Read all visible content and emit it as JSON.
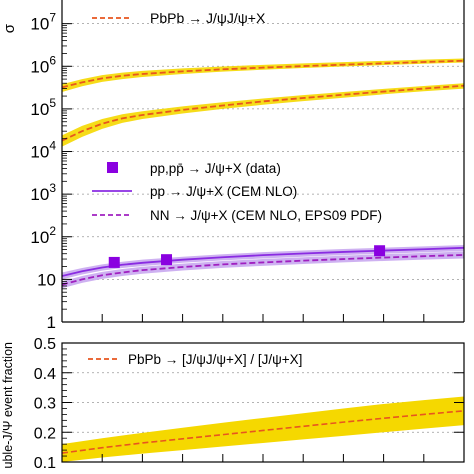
{
  "chart_data": [
    {
      "type": "line",
      "ylabel": "σ",
      "yscale": "log",
      "ylim": [
        1,
        40000000
      ],
      "xlim": [
        0,
        1
      ],
      "grid": true,
      "yticks": [
        {
          "value": 1,
          "base": "1",
          "exp": ""
        },
        {
          "value": 10,
          "base": "10",
          "exp": ""
        },
        {
          "value": 100,
          "base": "10",
          "exp": "2"
        },
        {
          "value": 1000,
          "base": "10",
          "exp": "3"
        },
        {
          "value": 10000,
          "base": "10",
          "exp": "4"
        },
        {
          "value": 100000,
          "base": "10",
          "exp": "5"
        },
        {
          "value": 1000000,
          "base": "10",
          "exp": "6"
        },
        {
          "value": 10000000,
          "base": "10",
          "exp": "7"
        }
      ],
      "x": [
        0,
        0.05,
        0.1,
        0.15,
        0.2,
        0.3,
        0.4,
        0.5,
        0.6,
        0.7,
        0.8,
        0.9,
        1.0
      ],
      "series": [
        {
          "name": "PbPb → J/ψJ/ψ+X",
          "style": "dashed",
          "color": "#e8561e",
          "band_color": "#f5d800",
          "values": [
            320000,
            420000,
            520000,
            600000,
            660000,
            760000,
            850000,
            930000,
            1010000,
            1090000,
            1170000,
            1260000,
            1350000
          ],
          "lower": [
            250000,
            340000,
            430000,
            500000,
            560000,
            660000,
            750000,
            830000,
            910000,
            990000,
            1070000,
            1150000,
            1230000
          ],
          "upper": [
            380000,
            500000,
            620000,
            710000,
            780000,
            890000,
            990000,
            1080000,
            1170000,
            1250000,
            1340000,
            1430000,
            1520000
          ]
        },
        {
          "style": "dashed",
          "color": "#e8561e",
          "band_color": "#f5d800",
          "values": [
            18000,
            30000,
            45000,
            60000,
            72000,
            95000,
            120000,
            150000,
            180000,
            215000,
            255000,
            300000,
            350000
          ],
          "lower": [
            13000,
            22000,
            34000,
            47000,
            58000,
            78000,
            100000,
            125000,
            152000,
            183000,
            220000,
            260000,
            300000
          ],
          "upper": [
            24000,
            40000,
            58000,
            75000,
            88000,
            115000,
            143000,
            175000,
            210000,
            250000,
            295000,
            345000,
            400000
          ]
        },
        {
          "name": "pp → J/ψ+X (CEM NLO)",
          "style": "solid",
          "color": "#8a2be2",
          "band_color": "#c9a8ef",
          "values": [
            12,
            15.5,
            19,
            22,
            24.5,
            29,
            33,
            37,
            40.5,
            44,
            47.5,
            51,
            55
          ],
          "lower": [
            10,
            13,
            16,
            18.5,
            20.5,
            24.5,
            28,
            31,
            34,
            37,
            40,
            43,
            46
          ],
          "upper": [
            14.5,
            18.5,
            22.5,
            26,
            29,
            34,
            39,
            43.5,
            47.5,
            51.5,
            55.5,
            59.5,
            64
          ]
        },
        {
          "name": "NN → J/ψ+X (CEM NLO, EPS09 PDF)",
          "style": "dashed",
          "color": "#a020c0",
          "band_color": "#c9a8ef",
          "values": [
            7.5,
            10,
            12.5,
            14.5,
            16.5,
            19.5,
            22.5,
            25,
            27.5,
            30,
            32.5,
            35,
            37.5
          ],
          "lower": [
            6.2,
            8.3,
            10.3,
            12,
            13.6,
            16.2,
            18.6,
            20.8,
            22.9,
            25,
            27,
            29,
            31
          ],
          "upper": [
            9,
            12,
            15,
            17.5,
            19.8,
            23.5,
            27,
            30,
            33,
            36,
            39,
            42,
            45
          ]
        }
      ],
      "points": {
        "name": "pp,pp̄ → J/ψ+X (data)",
        "color": "#8a00e0",
        "data": [
          [
            0.13,
            25
          ],
          [
            0.26,
            29
          ],
          [
            0.79,
            47
          ]
        ]
      }
    },
    {
      "type": "line",
      "ylabel": "uble-J/Ψ event fraction",
      "ylim": [
        0.1,
        0.5
      ],
      "xlim": [
        0,
        1
      ],
      "grid": true,
      "yticks": [
        {
          "value": 0.1,
          "label": "0.1"
        },
        {
          "value": 0.2,
          "label": "0.2"
        },
        {
          "value": 0.3,
          "label": "0.3"
        },
        {
          "value": 0.4,
          "label": "0.4"
        },
        {
          "value": 0.5,
          "label": "0.5"
        }
      ],
      "x": [
        0,
        0.1,
        0.2,
        0.3,
        0.4,
        0.5,
        0.6,
        0.7,
        0.8,
        0.9,
        1.0
      ],
      "series": [
        {
          "name": "PbPb → [J/ψJ/ψ+X] / [J/ψ+X]",
          "style": "dashed",
          "color": "#e8561e",
          "band_color": "#f5d800",
          "values": [
            0.13,
            0.148,
            0.164,
            0.178,
            0.192,
            0.206,
            0.22,
            0.234,
            0.247,
            0.26,
            0.272
          ],
          "lower": [
            0.1,
            0.115,
            0.128,
            0.14,
            0.152,
            0.164,
            0.176,
            0.188,
            0.2,
            0.212,
            0.224
          ],
          "upper": [
            0.16,
            0.18,
            0.198,
            0.215,
            0.232,
            0.248,
            0.264,
            0.28,
            0.295,
            0.308,
            0.32
          ]
        }
      ]
    }
  ]
}
